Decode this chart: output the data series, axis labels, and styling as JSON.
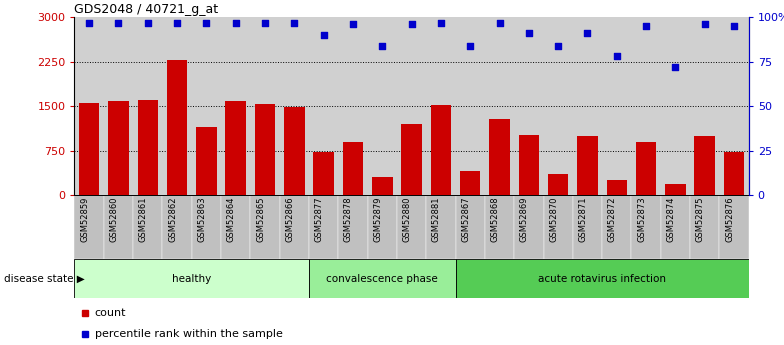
{
  "title": "GDS2048 / 40721_g_at",
  "samples": [
    "GSM52859",
    "GSM52860",
    "GSM52861",
    "GSM52862",
    "GSM52863",
    "GSM52864",
    "GSM52865",
    "GSM52866",
    "GSM52877",
    "GSM52878",
    "GSM52879",
    "GSM52880",
    "GSM52881",
    "GSM52867",
    "GSM52868",
    "GSM52869",
    "GSM52870",
    "GSM52871",
    "GSM52872",
    "GSM52873",
    "GSM52874",
    "GSM52875",
    "GSM52876"
  ],
  "counts": [
    1560,
    1590,
    1610,
    2280,
    1150,
    1580,
    1530,
    1490,
    720,
    900,
    300,
    1200,
    1520,
    410,
    1280,
    1020,
    360,
    1000,
    260,
    900,
    180,
    1000,
    720
  ],
  "percentiles": [
    97,
    97,
    97,
    97,
    97,
    97,
    97,
    97,
    90,
    96,
    84,
    96,
    97,
    84,
    97,
    91,
    84,
    91,
    78,
    95,
    72,
    96,
    95
  ],
  "groups": [
    {
      "label": "healthy",
      "start": 0,
      "end": 8,
      "color": "#ccffcc"
    },
    {
      "label": "convalescence phase",
      "start": 8,
      "end": 13,
      "color": "#99ee99"
    },
    {
      "label": "acute rotavirus infection",
      "start": 13,
      "end": 23,
      "color": "#55cc55"
    }
  ],
  "bar_color": "#cc0000",
  "dot_color": "#0000cc",
  "bg_color": "#d0d0d0",
  "tick_bg_color": "#c0c0c0",
  "label_count": "count",
  "label_percentile": "percentile rank within the sample",
  "disease_state_label": "disease state"
}
